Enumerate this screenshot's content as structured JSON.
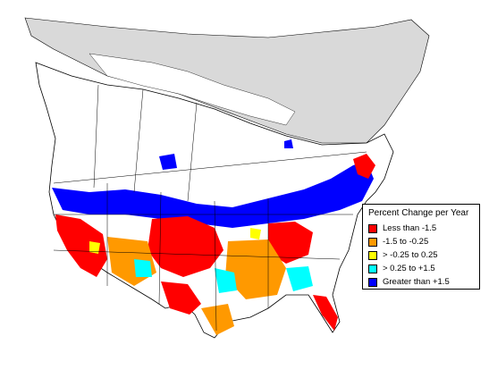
{
  "legend": {
    "title": "Percent Change per Year",
    "items": [
      {
        "label": "Less than -1.5",
        "color": "#ff0000"
      },
      {
        "label": "-1.5 to -0.25",
        "color": "#ff9900"
      },
      {
        "label": "> -0.25 to 0.25",
        "color": "#ffff00"
      },
      {
        "label": "> 0.25 to +1.5",
        "color": "#00ffff"
      },
      {
        "label": "Greater than +1.5",
        "color": "#0000ff"
      }
    ]
  },
  "colors": {
    "no_data_land": "#ffffff",
    "outside_range": "#d9d9d9",
    "border": "#000000"
  }
}
